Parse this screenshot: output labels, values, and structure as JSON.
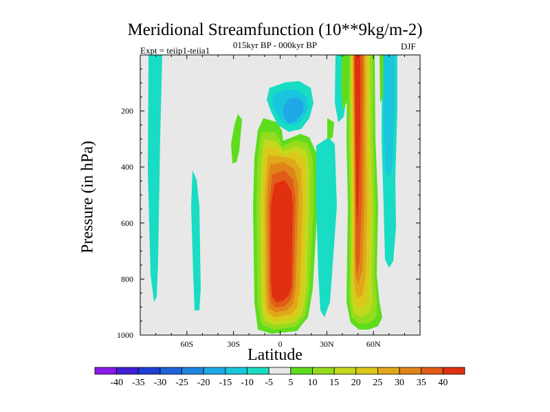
{
  "chart_data": {
    "type": "heatmap",
    "title": "Meridional Streamfunction (10**9kg/m-2)",
    "subtitle": "015kyr BP - 000kyr BP",
    "left_label": "Expt = teiip1-teiia1",
    "right_label": "DJF",
    "xlabel": "Latitude",
    "ylabel": "Pressure (in hPa)",
    "xlim": [
      -90,
      90
    ],
    "ylim": [
      1000,
      0
    ],
    "x_ticks": [
      -60,
      -30,
      0,
      30,
      60
    ],
    "x_tick_labels": [
      "60S",
      "30S",
      "0",
      "30N",
      "60N"
    ],
    "y_ticks": [
      200,
      400,
      600,
      800,
      1000
    ],
    "y_tick_labels": [
      "200",
      "400",
      "600",
      "800",
      "1000"
    ],
    "colorbar": {
      "labels": [
        "-40",
        "-35",
        "-30",
        "-25",
        "-20",
        "-15",
        "-10",
        "-5",
        "5",
        "10",
        "15",
        "20",
        "25",
        "30",
        "35",
        "40"
      ],
      "colors": [
        "#8a1ae6",
        "#4020d6",
        "#1d3fd4",
        "#1e63db",
        "#1e86e0",
        "#1ea8e5",
        "#19c6dd",
        "#19dcc4",
        "#e8e8e8",
        "#5fdc1e",
        "#94dc1e",
        "#c3d81e",
        "#dcc71a",
        "#e0a81a",
        "#e0841a",
        "#e05c18",
        "#e03010"
      ]
    },
    "features": [
      {
        "lat": [
          -80,
          -73
        ],
        "p": [
          0,
          870
        ],
        "value": -5
      },
      {
        "lat": [
          -55,
          -50
        ],
        "p": [
          420,
          900
        ],
        "value": -5
      },
      {
        "lat": [
          -28,
          -25
        ],
        "p": [
          200,
          380
        ],
        "value": 5
      },
      {
        "lat": [
          -15,
          12
        ],
        "p": [
          290,
          980
        ],
        "value": 40
      },
      {
        "lat": [
          -5,
          22
        ],
        "p": [
          100,
          270
        ],
        "value": -15
      },
      {
        "lat": [
          18,
          33
        ],
        "p": [
          210,
          950
        ],
        "value": -5
      },
      {
        "lat": [
          30,
          40
        ],
        "p": [
          0,
          260
        ],
        "value": -5
      },
      {
        "lat": [
          38,
          46
        ],
        "p": [
          0,
          170
        ],
        "value": 5
      },
      {
        "lat": [
          45,
          57
        ],
        "p": [
          0,
          970
        ],
        "value": 40
      },
      {
        "lat": [
          52,
          65
        ],
        "p": [
          0,
          730
        ],
        "value": -10
      },
      {
        "lat": [
          60,
          70
        ],
        "p": [
          0,
          760
        ],
        "value": -5
      }
    ]
  }
}
